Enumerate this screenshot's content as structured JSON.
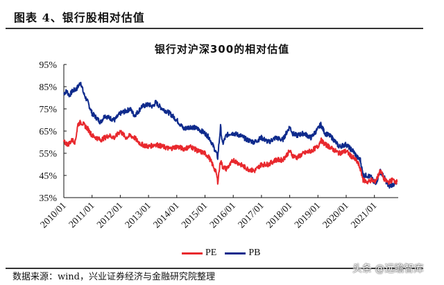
{
  "figure": {
    "title": "图表 4、银行股相对估值",
    "source": "数据来源：wind，兴业证券经济与金融研究院整理",
    "watermark": "头条 @远瞻智库"
  },
  "legend": [
    {
      "label": "PE",
      "color": "#e8282d"
    },
    {
      "label": "PB",
      "color": "#0e2a8c"
    }
  ],
  "chart_data": {
    "type": "line",
    "title": "银行对沪深300的相对估值",
    "xlabel": "",
    "ylabel": "",
    "ylim": [
      35,
      95
    ],
    "yticks": [
      "95%",
      "85%",
      "75%",
      "65%",
      "55%",
      "45%",
      "35%"
    ],
    "xticks": [
      "2010/01",
      "2011/01",
      "2012/01",
      "2013/01",
      "2014/01",
      "2015/01",
      "2016/01",
      "2017/01",
      "2018/01",
      "2019/01",
      "2020/01",
      "2021/01"
    ],
    "xrange": [
      2010.0,
      2021.85
    ],
    "grid": false,
    "legend_position": "bottom",
    "series": [
      {
        "name": "PE",
        "color": "#e8282d",
        "x": [
          2010.0,
          2010.15,
          2010.3,
          2010.4,
          2010.5,
          2010.6,
          2010.7,
          2010.85,
          2011.0,
          2011.15,
          2011.3,
          2011.45,
          2011.6,
          2011.8,
          2012.0,
          2012.2,
          2012.35,
          2012.5,
          2012.65,
          2012.75,
          2013.0,
          2013.25,
          2013.5,
          2013.75,
          2014.0,
          2014.25,
          2014.5,
          2014.75,
          2015.0,
          2015.15,
          2015.3,
          2015.4,
          2015.45,
          2015.5,
          2015.55,
          2015.62,
          2015.75,
          2015.9,
          2016.0,
          2016.25,
          2016.5,
          2016.75,
          2017.0,
          2017.25,
          2017.5,
          2017.75,
          2018.0,
          2018.1,
          2018.25,
          2018.5,
          2018.75,
          2019.0,
          2019.1,
          2019.25,
          2019.4,
          2019.5,
          2019.75,
          2020.0,
          2020.15,
          2020.25,
          2020.4,
          2020.5,
          2020.6,
          2020.75,
          2020.9,
          2021.0,
          2021.1,
          2021.2,
          2021.3,
          2021.35,
          2021.5,
          2021.65,
          2021.8
        ],
        "values": [
          60,
          59,
          61,
          60,
          68,
          69,
          68,
          66,
          63,
          62,
          61,
          62,
          63,
          62,
          65,
          62,
          63,
          62,
          60,
          59,
          58,
          59,
          58,
          57,
          58,
          57,
          58,
          56,
          55,
          53,
          49,
          46,
          42,
          47,
          52,
          49,
          48,
          50,
          52,
          50,
          48,
          47,
          50,
          50,
          52,
          52,
          56,
          54,
          53,
          55,
          56,
          58,
          61,
          59,
          58,
          57,
          55,
          56,
          54,
          53,
          51,
          48,
          43,
          42,
          43,
          42,
          44,
          47,
          45,
          43,
          42,
          43,
          42
        ]
      },
      {
        "name": "PB",
        "color": "#0e2a8c",
        "x": [
          2010.0,
          2010.1,
          2010.2,
          2010.3,
          2010.45,
          2010.6,
          2010.7,
          2010.85,
          2011.0,
          2011.15,
          2011.3,
          2011.45,
          2011.6,
          2011.8,
          2012.0,
          2012.2,
          2012.35,
          2012.5,
          2012.65,
          2012.75,
          2013.0,
          2013.15,
          2013.25,
          2013.4,
          2013.5,
          2013.75,
          2014.0,
          2014.25,
          2014.5,
          2014.75,
          2015.0,
          2015.15,
          2015.3,
          2015.4,
          2015.45,
          2015.5,
          2015.55,
          2015.62,
          2015.75,
          2015.9,
          2016.0,
          2016.25,
          2016.5,
          2016.75,
          2017.0,
          2017.25,
          2017.5,
          2017.75,
          2018.0,
          2018.1,
          2018.25,
          2018.5,
          2018.75,
          2019.0,
          2019.1,
          2019.25,
          2019.4,
          2019.5,
          2019.75,
          2020.0,
          2020.15,
          2020.25,
          2020.4,
          2020.5,
          2020.6,
          2020.75,
          2020.9,
          2021.0,
          2021.1,
          2021.2,
          2021.3,
          2021.35,
          2021.5,
          2021.65,
          2021.8
        ],
        "values": [
          82,
          83,
          81,
          83,
          84,
          87,
          82,
          78,
          73,
          71,
          69,
          72,
          71,
          70,
          73,
          74,
          75,
          72,
          74,
          76,
          77,
          76,
          78,
          76,
          75,
          73,
          70,
          66,
          67,
          66,
          64,
          62,
          58,
          55,
          53,
          60,
          67,
          59,
          63,
          64,
          64,
          63,
          61,
          60,
          62,
          60,
          62,
          61,
          67,
          64,
          63,
          64,
          62,
          66,
          68,
          64,
          63,
          62,
          58,
          59,
          57,
          56,
          53,
          52,
          45,
          45,
          44,
          41,
          43,
          47,
          45,
          44,
          40,
          41,
          41
        ]
      }
    ]
  }
}
